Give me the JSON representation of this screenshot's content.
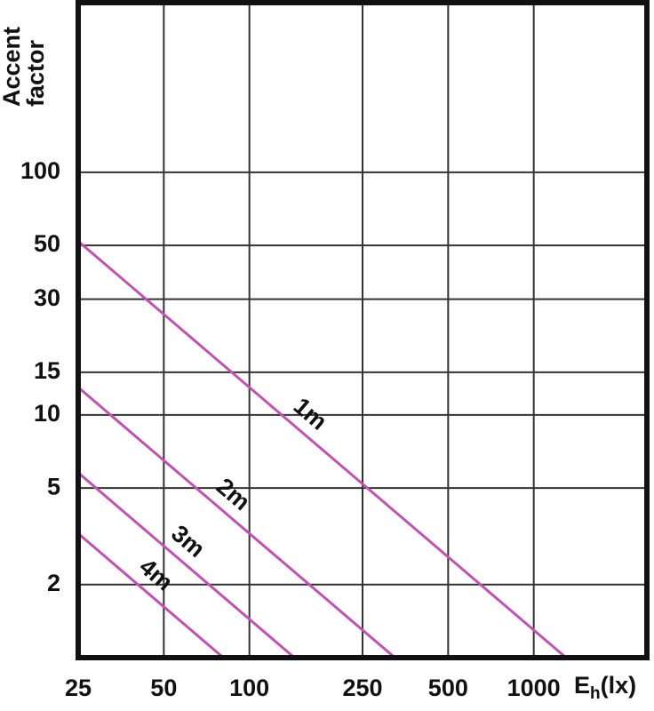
{
  "chart_data": {
    "type": "line",
    "y_label": "Accent factor",
    "x_label": {
      "symbol": "E",
      "subscript": "h",
      "unit": "(lx)"
    },
    "xscale": "log",
    "yscale": "log",
    "xlim": [
      25,
      2500
    ],
    "ylim": [
      1,
      500
    ],
    "xticks": [
      25,
      50,
      100,
      250,
      500,
      1000
    ],
    "yticks": [
      2,
      5,
      10,
      15,
      30,
      50,
      100
    ],
    "grid": true,
    "series": [
      {
        "name": "1m",
        "color": "#c152b4",
        "x": [
          25,
          1300
        ],
        "values": [
          52,
          1
        ]
      },
      {
        "name": "2m",
        "color": "#c152b4",
        "x": [
          25,
          325
        ],
        "values": [
          13,
          1
        ]
      },
      {
        "name": "3m",
        "color": "#c152b4",
        "x": [
          25,
          144
        ],
        "values": [
          5.78,
          1
        ]
      },
      {
        "name": "4m",
        "color": "#c152b4",
        "x": [
          25,
          81
        ],
        "values": [
          3.25,
          1
        ]
      }
    ]
  }
}
